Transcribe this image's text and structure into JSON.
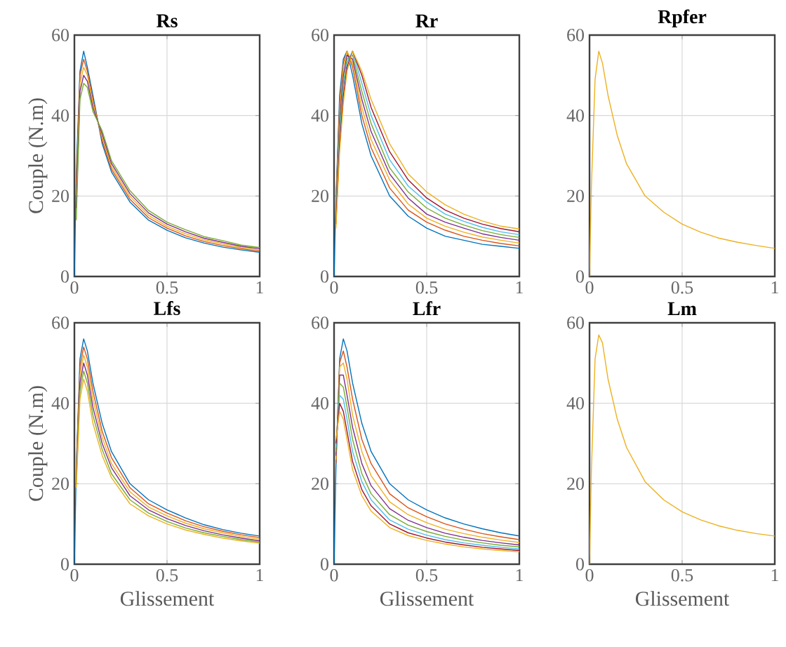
{
  "chart_data": [
    {
      "type": "line",
      "title": "Rs",
      "ylabel": "Couple (N.m)",
      "xlim": [
        0,
        1
      ],
      "ylim": [
        0,
        60
      ],
      "xticks": [
        0,
        0.5,
        1
      ],
      "yticks": [
        0,
        20,
        40,
        60
      ],
      "grid": true,
      "x": [
        0,
        0.01,
        0.03,
        0.05,
        0.07,
        0.1,
        0.15,
        0.2,
        0.3,
        0.4,
        0.5,
        0.6,
        0.7,
        0.8,
        0.9,
        1
      ],
      "series": [
        {
          "color": "#0072bd",
          "values": [
            0,
            26,
            51,
            56,
            52,
            45,
            33,
            26,
            18.5,
            14,
            11.5,
            9.6,
            8.3,
            7.3,
            6.6,
            6
          ]
        },
        {
          "color": "#d95319",
          "values": [
            null,
            23,
            50,
            54,
            51,
            44,
            33.8,
            26.7,
            19.2,
            14.6,
            12,
            10.1,
            8.7,
            7.7,
            6.9,
            6.3
          ]
        },
        {
          "color": "#edb120",
          "values": [
            null,
            20,
            48,
            52,
            50,
            43,
            34.6,
            27.4,
            19.9,
            15.2,
            12.5,
            10.6,
            9.1,
            8.1,
            7.2,
            6.6
          ]
        },
        {
          "color": "#7e2f8e",
          "values": [
            null,
            17,
            46,
            50,
            48.5,
            42,
            35.4,
            28.1,
            20.6,
            15.8,
            13,
            11.1,
            9.5,
            8.5,
            7.5,
            6.9
          ]
        },
        {
          "color": "#77ac30",
          "values": [
            null,
            14,
            44,
            48,
            47,
            41,
            36.2,
            28.8,
            21.3,
            16.4,
            13.5,
            11.6,
            9.9,
            8.9,
            7.8,
            7.2
          ]
        }
      ]
    },
    {
      "type": "line",
      "title": "Rr",
      "xlim": [
        0,
        1
      ],
      "ylim": [
        0,
        60
      ],
      "xticks": [
        0,
        0.5,
        1
      ],
      "yticks": [
        0,
        20,
        40,
        60
      ],
      "grid": true,
      "x": [
        0,
        0.01,
        0.03,
        0.05,
        0.07,
        0.1,
        0.15,
        0.2,
        0.3,
        0.4,
        0.5,
        0.6,
        0.7,
        0.8,
        0.9,
        1
      ],
      "series": [
        {
          "color": "#0072bd",
          "values": [
            0,
            19,
            45,
            54,
            56,
            50,
            38,
            30,
            20,
            15,
            12,
            10,
            9,
            8,
            7.5,
            7
          ]
        },
        {
          "color": "#d95319",
          "values": [
            null,
            18,
            43,
            53,
            56,
            52,
            40,
            32,
            22,
            16.5,
            13.5,
            11.5,
            10,
            9,
            8.2,
            7.6
          ]
        },
        {
          "color": "#edb120",
          "values": [
            null,
            17,
            41,
            52,
            56,
            53,
            42,
            34,
            24,
            18,
            14.5,
            12.5,
            11,
            9.8,
            9,
            8.3
          ]
        },
        {
          "color": "#7e2f8e",
          "values": [
            null,
            16,
            39,
            50,
            55,
            54,
            44,
            36,
            25.5,
            19.5,
            15.5,
            13.5,
            12,
            10.6,
            9.7,
            9
          ]
        },
        {
          "color": "#77ac30",
          "values": [
            null,
            15,
            37,
            48,
            54,
            55,
            46,
            38,
            27,
            21,
            17,
            14.5,
            12.8,
            11.4,
            10.4,
            9.7
          ]
        },
        {
          "color": "#4dbeee",
          "values": [
            null,
            14,
            35,
            47,
            53,
            56,
            48,
            40,
            29,
            22.5,
            18.5,
            15.5,
            13.7,
            12.2,
            11.1,
            10.4
          ]
        },
        {
          "color": "#a2142f",
          "values": [
            null,
            13,
            33,
            45,
            52,
            56,
            50,
            42,
            31,
            24,
            19.5,
            16.5,
            14.5,
            13,
            11.9,
            11.1
          ]
        },
        {
          "color": "#edb120",
          "values": [
            null,
            12,
            31,
            43,
            51,
            56,
            51,
            44,
            33,
            25.5,
            21,
            17.8,
            15.5,
            13.8,
            12.5,
            11.8
          ]
        }
      ]
    },
    {
      "type": "line",
      "title": "Rpfer",
      "xlim": [
        0,
        1
      ],
      "ylim": [
        0,
        60
      ],
      "xticks": [
        0,
        0.5,
        1
      ],
      "yticks": [
        0,
        20,
        40,
        60
      ],
      "grid": true,
      "x": [
        0,
        0.01,
        0.03,
        0.05,
        0.07,
        0.1,
        0.15,
        0.2,
        0.3,
        0.4,
        0.5,
        0.6,
        0.7,
        0.8,
        0.9,
        1
      ],
      "series": [
        {
          "color": "#edb120",
          "values": [
            0,
            22,
            49,
            56,
            53,
            45,
            35,
            28,
            20,
            16,
            13,
            11,
            9.5,
            8.5,
            7.7,
            7
          ]
        }
      ]
    },
    {
      "type": "line",
      "title": "Lfs",
      "xlabel": "Glissement",
      "ylabel": "Couple (N.m)",
      "xlim": [
        0,
        1
      ],
      "ylim": [
        0,
        60
      ],
      "xticks": [
        0,
        0.5,
        1
      ],
      "yticks": [
        0,
        20,
        40,
        60
      ],
      "grid": true,
      "x": [
        0,
        0.01,
        0.03,
        0.05,
        0.07,
        0.1,
        0.15,
        0.2,
        0.3,
        0.4,
        0.5,
        0.6,
        0.7,
        0.8,
        0.9,
        1
      ],
      "series": [
        {
          "color": "#0072bd",
          "values": [
            0,
            24,
            51,
            56,
            53,
            45,
            35,
            28,
            20,
            16,
            13.5,
            11.5,
            9.8,
            8.6,
            7.7,
            7
          ]
        },
        {
          "color": "#d95319",
          "values": [
            null,
            23,
            49,
            54,
            51,
            43,
            33,
            26.5,
            19,
            15,
            12.7,
            10.8,
            9.3,
            8.2,
            7.3,
            6.6
          ]
        },
        {
          "color": "#edb120",
          "values": [
            null,
            22,
            47,
            52,
            49,
            41,
            31.5,
            25,
            18,
            14.2,
            12,
            10.2,
            8.8,
            7.8,
            6.9,
            6.2
          ]
        },
        {
          "color": "#7e2f8e",
          "values": [
            null,
            21,
            45,
            50,
            47,
            39,
            30,
            24,
            17,
            13.5,
            11.3,
            9.6,
            8.3,
            7.3,
            6.5,
            5.8
          ]
        },
        {
          "color": "#77ac30",
          "values": [
            null,
            20,
            43,
            48,
            45,
            37,
            28.5,
            22.5,
            16,
            12.7,
            10.6,
            9,
            7.8,
            6.9,
            6.1,
            5.5
          ]
        },
        {
          "color": "#edb120",
          "values": [
            null,
            19,
            41,
            46,
            43,
            35,
            27,
            21.5,
            15,
            12,
            10,
            8.5,
            7.4,
            6.5,
            5.8,
            5.2
          ]
        }
      ]
    },
    {
      "type": "line",
      "title": "Lfr",
      "xlabel": "Glissement",
      "xlim": [
        0,
        1
      ],
      "ylim": [
        0,
        60
      ],
      "xticks": [
        0,
        0.5,
        1
      ],
      "yticks": [
        0,
        20,
        40,
        60
      ],
      "grid": true,
      "x": [
        0,
        0.01,
        0.03,
        0.05,
        0.07,
        0.1,
        0.15,
        0.2,
        0.3,
        0.4,
        0.5,
        0.6,
        0.7,
        0.8,
        0.9,
        1
      ],
      "series": [
        {
          "color": "#0072bd",
          "values": [
            0,
            24,
            51,
            56,
            53,
            45,
            35,
            28,
            20,
            16,
            13.5,
            11.5,
            10,
            8.8,
            7.8,
            7
          ]
        },
        {
          "color": "#d95319",
          "values": [
            null,
            25,
            50,
            53,
            49,
            41,
            31,
            25,
            17.5,
            14,
            11.8,
            10,
            8.7,
            7.6,
            6.8,
            6.1
          ]
        },
        {
          "color": "#edb120",
          "values": [
            null,
            26,
            49,
            50,
            46,
            37,
            28,
            22,
            15.5,
            12.3,
            10.3,
            8.7,
            7.6,
            6.7,
            6,
            5.4
          ]
        },
        {
          "color": "#7e2f8e",
          "values": [
            null,
            27,
            47,
            47,
            42,
            34,
            25,
            19.5,
            13.8,
            10.9,
            9.1,
            7.7,
            6.7,
            5.9,
            5.3,
            4.8
          ]
        },
        {
          "color": "#77ac30",
          "values": [
            null,
            28,
            45,
            44,
            39,
            31,
            22.5,
            17.5,
            12.3,
            9.7,
            8.1,
            6.9,
            6,
            5.3,
            4.7,
            4.3
          ]
        },
        {
          "color": "#4dbeee",
          "values": [
            null,
            29,
            42,
            41,
            36,
            28,
            20.5,
            16,
            11,
            8.7,
            7.2,
            6.1,
            5.3,
            4.7,
            4.2,
            3.8
          ]
        },
        {
          "color": "#a2142f",
          "values": [
            null,
            30,
            40,
            38,
            33,
            25.5,
            18.5,
            14.5,
            10,
            7.8,
            6.5,
            5.5,
            4.8,
            4.2,
            3.8,
            3.4
          ]
        },
        {
          "color": "#edb120",
          "values": [
            null,
            31,
            38,
            36,
            31,
            23.5,
            17,
            13.2,
            9.1,
            7.1,
            5.9,
            5,
            4.3,
            3.8,
            3.4,
            3.1
          ]
        }
      ]
    },
    {
      "type": "line",
      "title": "Lm",
      "xlabel": "Glissement",
      "xlim": [
        0,
        1
      ],
      "ylim": [
        0,
        60
      ],
      "xticks": [
        0,
        0.5,
        1
      ],
      "yticks": [
        0,
        20,
        40,
        60
      ],
      "grid": true,
      "x": [
        0,
        0.01,
        0.03,
        0.05,
        0.07,
        0.1,
        0.15,
        0.2,
        0.3,
        0.4,
        0.5,
        0.6,
        0.7,
        0.8,
        0.9,
        1
      ],
      "series": [
        {
          "color": "#edb120",
          "values": [
            0,
            23,
            51,
            57,
            55,
            46,
            36,
            29,
            20.5,
            16,
            13,
            11,
            9.5,
            8.4,
            7.6,
            7
          ]
        }
      ]
    }
  ]
}
